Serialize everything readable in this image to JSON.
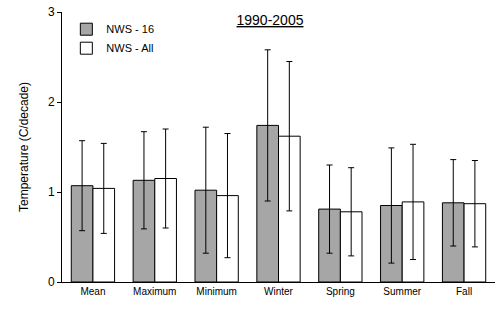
{
  "chart_data": {
    "type": "bar",
    "title": "1990-2005",
    "y_label": "Temperature (C/decade)",
    "categories": [
      "Mean",
      "Maximum",
      "Minimum",
      "Winter",
      "Spring",
      "Summer",
      "Fall"
    ],
    "series": [
      {
        "name": "NWS - 16",
        "color": "#a6a6a6",
        "values": [
          1.07,
          1.13,
          1.02,
          1.74,
          0.81,
          0.85,
          0.88
        ],
        "errors": [
          0.5,
          0.54,
          0.7,
          0.84,
          0.49,
          0.64,
          0.48
        ]
      },
      {
        "name": "NWS - All",
        "color": "#ffffff",
        "values": [
          1.04,
          1.15,
          0.96,
          1.62,
          0.78,
          0.89,
          0.87
        ],
        "errors": [
          0.5,
          0.55,
          0.69,
          0.83,
          0.49,
          0.64,
          0.48
        ]
      }
    ],
    "ylim": [
      0,
      3
    ],
    "yticks": [
      0,
      1,
      2,
      3
    ],
    "grid": false,
    "legend": "upper left"
  }
}
